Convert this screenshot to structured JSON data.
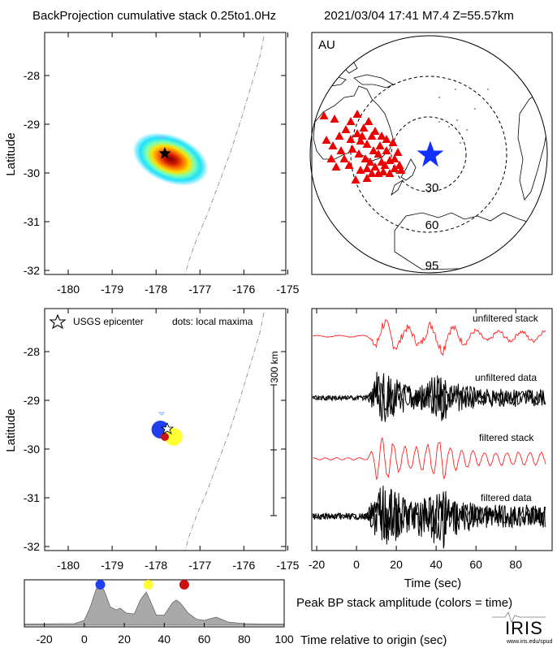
{
  "header": {
    "left_title": "BackProjection cumulative stack 0.25to1.0Hz",
    "right_title": "2021/03/04 17:41   M7.4   Z=55.57km"
  },
  "map_top": {
    "ylabel": "Latitude",
    "yticks": [
      "-28",
      "-29",
      "-30",
      "-31",
      "-32"
    ],
    "xticks": [
      "-180",
      "-179",
      "-178",
      "-177",
      "-176",
      "-175"
    ],
    "epicenter": {
      "lon": -177.8,
      "lat": -29.6
    }
  },
  "globe": {
    "network_label": "AU",
    "ring_labels": [
      "30",
      "60",
      "95"
    ],
    "station_marker": "red-triangle",
    "epicenter_marker": "blue-star"
  },
  "map_bottom": {
    "ylabel": "Latitude",
    "legend_epicenter": "USGS epicenter",
    "legend_dots": "dots: local maxima",
    "scale_label": "300 km",
    "yticks": [
      "-28",
      "-29",
      "-30",
      "-31",
      "-32"
    ],
    "xticks": [
      "-180",
      "-179",
      "-178",
      "-177",
      "-176",
      "-175"
    ],
    "maxima": [
      {
        "lon": -177.9,
        "lat": -29.6,
        "color": "#1f3ff0"
      },
      {
        "lon": -177.6,
        "lat": -29.75,
        "color": "#ffff33"
      },
      {
        "lon": -177.8,
        "lat": -29.75,
        "color": "#cc1111"
      }
    ]
  },
  "traces": {
    "labels": [
      "unfiltered stack",
      "unfiltered data",
      "filtered stack",
      "filtered data"
    ],
    "xticks": [
      "-20",
      "0",
      "20",
      "40",
      "60",
      "80"
    ],
    "xlabel": "Time (sec)"
  },
  "amplitude": {
    "caption": "Peak BP stack amplitude (colors = time)",
    "xlabel": "Time relative to origin (sec)",
    "xticks": [
      "-20",
      "0",
      "20",
      "40",
      "60",
      "80",
      "100"
    ]
  },
  "logo": {
    "text": "IRIS",
    "url": "www.iris.edu/spud"
  },
  "chart_data": [
    {
      "type": "scatter",
      "title": "BackProjection cumulative stack 0.25to1.0Hz",
      "xlabel": "",
      "ylabel": "Latitude",
      "xlim": [
        -180.5,
        -175
      ],
      "ylim": [
        -32,
        -27.2
      ],
      "peak": {
        "lon": -177.8,
        "lat": -29.6
      }
    },
    {
      "type": "scatter",
      "title": "",
      "xlabel": "",
      "ylabel": "Latitude",
      "xlim": [
        -180.5,
        -175
      ],
      "ylim": [
        -32,
        -27.2
      ],
      "series": [
        {
          "name": "dots: local maxima",
          "lon": [
            -177.9,
            -177.6,
            -177.8
          ],
          "lat": [
            -29.6,
            -29.75,
            -29.75
          ],
          "time": [
            8,
            32,
            50
          ]
        }
      ]
    },
    {
      "type": "line",
      "xlabel": "Time (sec)",
      "xlim": [
        -25,
        95
      ],
      "series": [
        {
          "name": "unfiltered stack",
          "color": "#ff3030"
        },
        {
          "name": "unfiltered data",
          "color": "#000000"
        },
        {
          "name": "filtered stack",
          "color": "#ff3030"
        },
        {
          "name": "filtered data",
          "color": "#000000"
        }
      ]
    },
    {
      "type": "area",
      "title": "Peak BP stack amplitude (colors = time)",
      "xlabel": "Time relative to origin (sec)",
      "xlim": [
        -30,
        100
      ],
      "x": [
        -30,
        -5,
        0,
        3,
        6,
        8,
        10,
        13,
        16,
        18,
        21,
        25,
        28,
        31,
        33,
        36,
        40,
        44,
        46,
        48,
        52,
        56,
        60,
        66,
        72,
        80,
        90,
        100
      ],
      "y": [
        0.03,
        0.04,
        0.12,
        0.45,
        0.9,
        1.0,
        0.85,
        0.45,
        0.38,
        0.42,
        0.3,
        0.28,
        0.62,
        0.82,
        0.6,
        0.25,
        0.25,
        0.55,
        0.62,
        0.55,
        0.3,
        0.15,
        0.12,
        0.2,
        0.08,
        0.04,
        0.03,
        0.03
      ],
      "markers": [
        {
          "time": 8,
          "color": "#1f3ff0"
        },
        {
          "time": 32,
          "color": "#ffff33"
        },
        {
          "time": 50,
          "color": "#cc1111"
        }
      ]
    }
  ]
}
